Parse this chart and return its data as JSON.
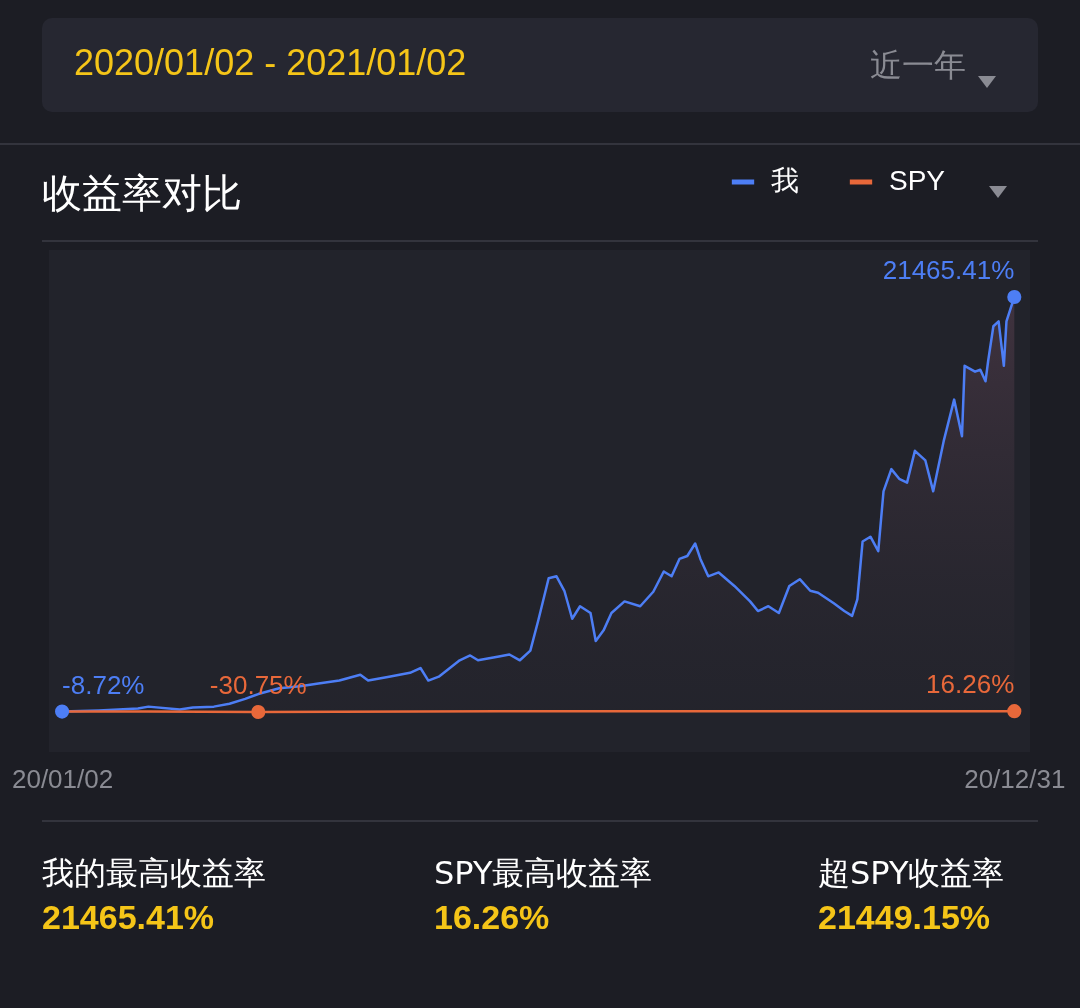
{
  "chart_data": {
    "type": "line",
    "title": "收益率对比",
    "legend": "top right",
    "annotations": [
      "2020/01/02 - 2021/01/02",
      "近一年",
      "我的最高收益率",
      "21465.41%",
      "SPY最高收益率",
      "16.26%",
      "超SPY收益率",
      "21449.15%"
    ],
    "xlim": [
      "2019-12-28",
      "2021-01-06"
    ],
    "xticks": [
      {
        "value": "2020-01-02",
        "label": "20/01/02"
      },
      {
        "value": "2020-12-31",
        "label": "20/12/31"
      }
    ],
    "ylim": [
      -2100,
      23900
    ],
    "series": [
      {
        "name": "我",
        "type": "area",
        "color": "#4d7ef5",
        "x": [
          "2020-01-02",
          "2020-01-16",
          "2020-01-31",
          "2020-02-04",
          "2020-02-16",
          "2020-02-21",
          "2020-02-29",
          "2020-03-06",
          "2020-03-12",
          "2020-03-17",
          "2020-03-25",
          "2020-04-02",
          "2020-04-09",
          "2020-04-17",
          "2020-04-25",
          "2020-04-28",
          "2020-05-06",
          "2020-05-14",
          "2020-05-18",
          "2020-05-21",
          "2020-05-25",
          "2020-06-02",
          "2020-06-06",
          "2020-06-09",
          "2020-06-17",
          "2020-06-21",
          "2020-06-25",
          "2020-06-29",
          "2020-07-02",
          "2020-07-06",
          "2020-07-09",
          "2020-07-12",
          "2020-07-15",
          "2020-07-18",
          "2020-07-22",
          "2020-07-24",
          "2020-07-27",
          "2020-07-30",
          "2020-08-04",
          "2020-08-10",
          "2020-08-15",
          "2020-08-19",
          "2020-08-22",
          "2020-08-25",
          "2020-08-28",
          "2020-08-31",
          "2020-09-02",
          "2020-09-05",
          "2020-09-09",
          "2020-09-15",
          "2020-09-21",
          "2020-09-24",
          "2020-09-28",
          "2020-10-02",
          "2020-10-06",
          "2020-10-10",
          "2020-10-14",
          "2020-10-17",
          "2020-10-23",
          "2020-10-27",
          "2020-10-30",
          "2020-11-01",
          "2020-11-03",
          "2020-11-06",
          "2020-11-09",
          "2020-11-11",
          "2020-11-14",
          "2020-11-17",
          "2020-11-20",
          "2020-11-23",
          "2020-11-27",
          "2020-11-30",
          "2020-12-04",
          "2020-12-08",
          "2020-12-11",
          "2020-12-12",
          "2020-12-16",
          "2020-12-18",
          "2020-12-20",
          "2020-12-21",
          "2020-12-23",
          "2020-12-25",
          "2020-12-27",
          "2020-12-28",
          "2020-12-31"
        ],
        "values": [
          -8.72,
          50,
          150,
          250,
          100,
          200,
          250,
          400,
          650,
          900,
          1200,
          1300,
          1450,
          1600,
          1900,
          1600,
          1800,
          2000,
          2250,
          1600,
          1800,
          2650,
          2900,
          2650,
          2850,
          2950,
          2650,
          3150,
          4700,
          6900,
          7000,
          6250,
          4800,
          5450,
          5100,
          3650,
          4200,
          5100,
          5700,
          5450,
          6200,
          7250,
          7000,
          7900,
          8050,
          8700,
          7900,
          7000,
          7200,
          6500,
          5700,
          5200,
          5450,
          5100,
          6500,
          6850,
          6250,
          6150,
          5600,
          5200,
          4950,
          5800,
          8800,
          9050,
          8300,
          11400,
          12550,
          12050,
          11850,
          13500,
          13000,
          11400,
          14000,
          16150,
          14250,
          17900,
          17600,
          17700,
          17100,
          18150,
          19950,
          20200,
          17900,
          20200,
          21465.41
        ],
        "value_labels": [
          "-8.72%",
          null,
          null,
          null,
          null,
          null,
          null,
          null,
          null,
          null,
          null,
          null,
          null,
          null,
          null,
          null,
          null,
          null,
          null,
          null,
          null,
          null,
          null,
          null,
          null,
          null,
          null,
          null,
          null,
          null,
          null,
          null,
          null,
          null,
          null,
          null,
          null,
          null,
          null,
          null,
          null,
          null,
          null,
          null,
          null,
          null,
          null,
          null,
          null,
          null,
          null,
          null,
          null,
          null,
          null,
          null,
          null,
          null,
          null,
          null,
          null,
          null,
          null,
          null,
          null,
          null,
          null,
          null,
          null,
          null,
          null,
          null,
          null,
          null,
          null,
          null,
          null,
          null,
          null,
          null,
          null,
          null,
          null,
          null,
          "21465.41%"
        ]
      },
      {
        "name": "SPY",
        "color": "#e8683a",
        "x": [
          "2020-01-02",
          "2020-02-04",
          "2020-03-17",
          "2020-06-17",
          "2020-10-10",
          "2020-12-31"
        ],
        "values": [
          0,
          3,
          -30.75,
          5,
          8,
          16.26
        ],
        "value_labels": [
          null,
          null,
          "-30.75%",
          null,
          null,
          "16.26%"
        ]
      }
    ]
  }
}
